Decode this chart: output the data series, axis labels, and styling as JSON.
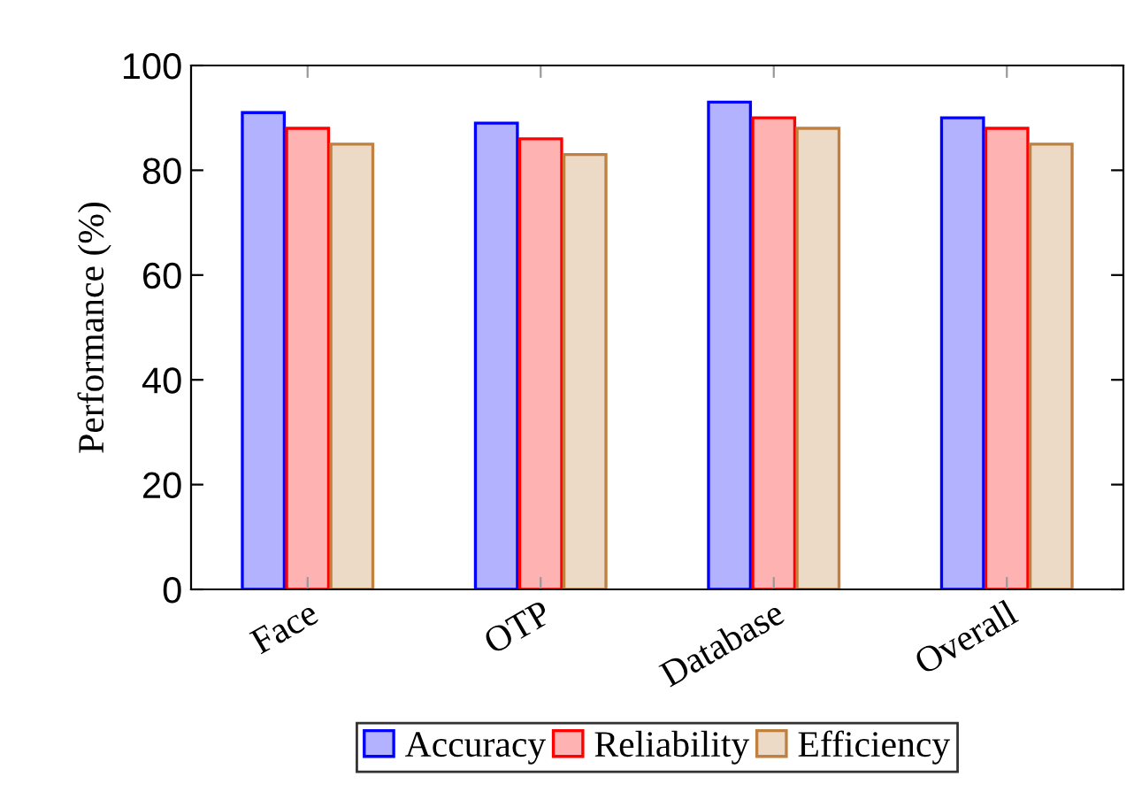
{
  "chart_data": {
    "type": "bar",
    "ylabel": "Performance (%)",
    "categories": [
      "Face",
      "OTP",
      "Database",
      "Overall"
    ],
    "series": [
      {
        "name": "Accuracy",
        "color": "#0000ff",
        "values": [
          91,
          89,
          93,
          90
        ]
      },
      {
        "name": "Reliability",
        "color": "#ff0000",
        "values": [
          88,
          86,
          90,
          88
        ]
      },
      {
        "name": "Efficiency",
        "color": "#bf8040",
        "values": [
          85,
          83,
          88,
          85
        ]
      }
    ],
    "ylim": [
      0,
      100
    ],
    "yticks": [
      0,
      20,
      40,
      60,
      80,
      100
    ],
    "grid": false,
    "legend": "bottom"
  }
}
